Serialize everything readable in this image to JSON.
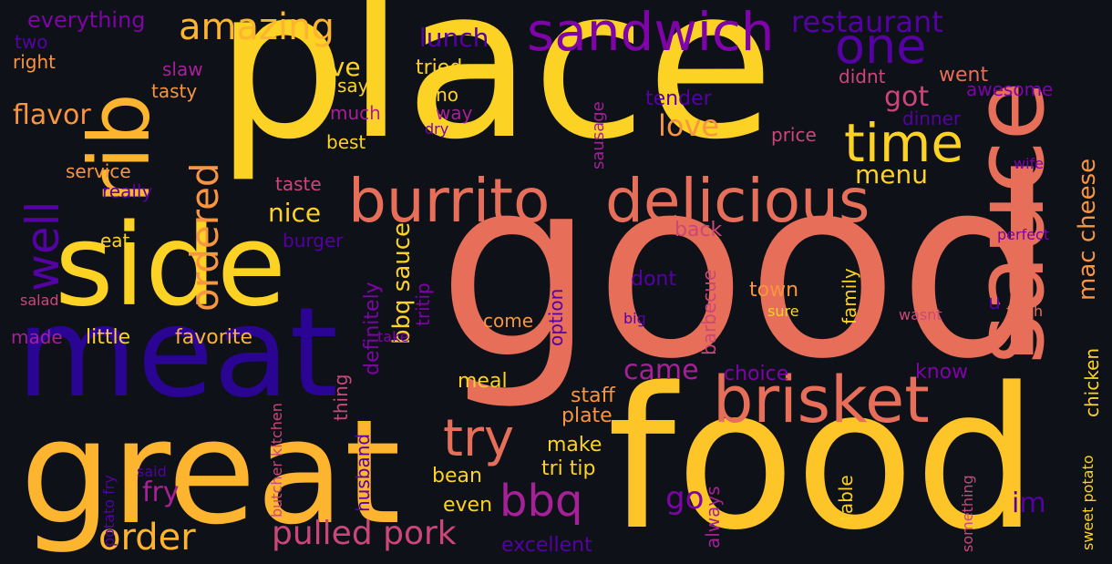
{
  "wordcloud": {
    "background": "#0e1117",
    "palette": {
      "yellow": "#fcd225",
      "amber": "#fdb42f",
      "orange": "#f89540",
      "coral": "#e76f5a",
      "pink": "#cc4778",
      "magenta": "#a62098",
      "purple": "#7e03a8",
      "violet": "#5402a3",
      "indigo": "#2a0593"
    },
    "words": [
      {
        "text": "good",
        "color": "#e76f5a"
      },
      {
        "text": "place",
        "color": "#fcd225"
      },
      {
        "text": "food",
        "color": "#fdc527"
      },
      {
        "text": "great",
        "color": "#fdb42f"
      },
      {
        "text": "meat",
        "color": "#2a0593"
      },
      {
        "text": "side",
        "color": "#fcd225"
      },
      {
        "text": "sauce",
        "color": "#e76f5a"
      },
      {
        "text": "rib",
        "color": "#fdb42f"
      },
      {
        "text": "burrito",
        "color": "#e76f5a"
      },
      {
        "text": "delicious",
        "color": "#e76f5a"
      },
      {
        "text": "brisket",
        "color": "#e76f5a"
      },
      {
        "text": "sandwich",
        "color": "#7e03a8"
      },
      {
        "text": "time",
        "color": "#fcd225"
      },
      {
        "text": "one",
        "color": "#5402a3"
      },
      {
        "text": "try",
        "color": "#e76f5a"
      },
      {
        "text": "bbq",
        "color": "#a62098"
      },
      {
        "text": "amazing",
        "color": "#fdb42f"
      },
      {
        "text": "restaurant",
        "color": "#5402a3"
      },
      {
        "text": "well",
        "color": "#5402a3"
      },
      {
        "text": "ordered",
        "color": "#f89540"
      },
      {
        "text": "order",
        "color": "#fdb42f"
      },
      {
        "text": "pulled pork",
        "color": "#cc4778"
      },
      {
        "text": "lunch",
        "color": "#5402a3"
      },
      {
        "text": "flavor",
        "color": "#f89540"
      },
      {
        "text": "got",
        "color": "#cc4778"
      },
      {
        "text": "love",
        "color": "#f89540"
      },
      {
        "text": "came",
        "color": "#a62098"
      },
      {
        "text": "mac cheese",
        "color": "#f89540"
      },
      {
        "text": "bbq sauce",
        "color": "#fcd225"
      },
      {
        "text": "menu",
        "color": "#fcd225"
      },
      {
        "text": "nice",
        "color": "#fcd225"
      },
      {
        "text": "ive",
        "color": "#fcd225"
      },
      {
        "text": "everything",
        "color": "#7e03a8"
      },
      {
        "text": "two",
        "color": "#5402a3"
      },
      {
        "text": "right",
        "color": "#f89540"
      },
      {
        "text": "slaw",
        "color": "#a62098"
      },
      {
        "text": "tasty",
        "color": "#f89540"
      },
      {
        "text": "tried",
        "color": "#fcd225"
      },
      {
        "text": "say",
        "color": "#fcd225"
      },
      {
        "text": "reno",
        "color": "#fcd225"
      },
      {
        "text": "much",
        "color": "#a62098"
      },
      {
        "text": "way",
        "color": "#a62098"
      },
      {
        "text": "best",
        "color": "#fcd225"
      },
      {
        "text": "dry",
        "color": "#7e03a8"
      },
      {
        "text": "sausage",
        "color": "#a62098"
      },
      {
        "text": "tender",
        "color": "#5402a3"
      },
      {
        "text": "didnt",
        "color": "#cc4778"
      },
      {
        "text": "went",
        "color": "#e76f5a"
      },
      {
        "text": "awesome",
        "color": "#7e03a8"
      },
      {
        "text": "dinner",
        "color": "#5402a3"
      },
      {
        "text": "price",
        "color": "#cc4778"
      },
      {
        "text": "service",
        "color": "#f89540"
      },
      {
        "text": "really",
        "color": "#5402a3"
      },
      {
        "text": "taste",
        "color": "#cc4778"
      },
      {
        "text": "eat",
        "color": "#fcd225"
      },
      {
        "text": "burger",
        "color": "#5402a3"
      },
      {
        "text": "salad",
        "color": "#cc4778"
      },
      {
        "text": "made",
        "color": "#a62098"
      },
      {
        "text": "little",
        "color": "#fcd225"
      },
      {
        "text": "favorite",
        "color": "#fdb42f"
      },
      {
        "text": "definitely",
        "color": "#7e03a8"
      },
      {
        "text": "tritip",
        "color": "#7e03a8"
      },
      {
        "text": "option",
        "color": "#5402a3"
      },
      {
        "text": "come",
        "color": "#f89540"
      },
      {
        "text": "take",
        "color": "#7e03a8"
      },
      {
        "text": "thing",
        "color": "#cc4778"
      },
      {
        "text": "back",
        "color": "#cc4778"
      },
      {
        "text": "dont",
        "color": "#5402a3"
      },
      {
        "text": "town",
        "color": "#f89540"
      },
      {
        "text": "family",
        "color": "#fcd225"
      },
      {
        "text": "barbecue",
        "color": "#cc4778"
      },
      {
        "text": "big",
        "color": "#5402a3"
      },
      {
        "text": "sure",
        "color": "#fcd225"
      },
      {
        "text": "wasnt",
        "color": "#cc4778"
      },
      {
        "text": "u",
        "color": "#5402a3"
      },
      {
        "text": "fresh",
        "color": "#e76f5a"
      },
      {
        "text": "perfect",
        "color": "#7e03a8"
      },
      {
        "text": "wife",
        "color": "#7e03a8"
      },
      {
        "text": "choice",
        "color": "#7e03a8"
      },
      {
        "text": "know",
        "color": "#7e03a8"
      },
      {
        "text": "meal",
        "color": "#fcd225"
      },
      {
        "text": "staff",
        "color": "#f89540"
      },
      {
        "text": "plate",
        "color": "#f89540"
      },
      {
        "text": "make",
        "color": "#fcd225"
      },
      {
        "text": "tri tip",
        "color": "#fcd225"
      },
      {
        "text": "bean",
        "color": "#fcd225"
      },
      {
        "text": "even",
        "color": "#fcd225"
      },
      {
        "text": "go",
        "color": "#7e03a8"
      },
      {
        "text": "im",
        "color": "#5402a3"
      },
      {
        "text": "fry",
        "color": "#a62098"
      },
      {
        "text": "husband",
        "color": "#5402a3"
      },
      {
        "text": "butcher kitchen",
        "color": "#cc4778"
      },
      {
        "text": "potato fry",
        "color": "#5402a3"
      },
      {
        "text": "said",
        "color": "#5402a3"
      },
      {
        "text": "excellent",
        "color": "#5402a3"
      },
      {
        "text": "always",
        "color": "#a62098"
      },
      {
        "text": "table",
        "color": "#fcd225"
      },
      {
        "text": "something",
        "color": "#cc4778"
      },
      {
        "text": "chicken",
        "color": "#fcd225"
      },
      {
        "text": "sweet potato",
        "color": "#fcd225"
      }
    ]
  }
}
